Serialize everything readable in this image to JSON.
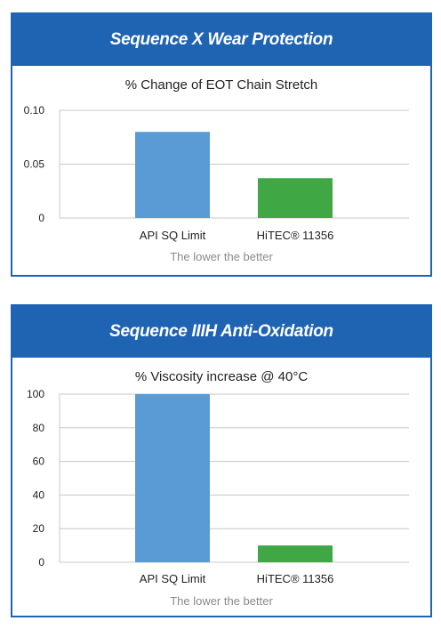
{
  "panels": [
    {
      "header": "Sequence X Wear Protection",
      "footnote": "The lower the better",
      "chart_data": {
        "type": "bar",
        "title": "% Change of EOT Chain Stretch",
        "categories": [
          "API SQ Limit",
          "HiTEC® 11356"
        ],
        "values": [
          0.08,
          0.037
        ],
        "colors": [
          "#5b9bd5",
          "#3fa845"
        ],
        "ylim": [
          0,
          0.1
        ],
        "yticks": [
          "0.10",
          "0.05",
          "0"
        ],
        "ytick_values": [
          0.1,
          0.05,
          0
        ],
        "grid": true,
        "xlabel": "",
        "ylabel": ""
      }
    },
    {
      "header": "Sequence IIIH Anti-Oxidation",
      "footnote": "The lower the better",
      "chart_data": {
        "type": "bar",
        "title": "% Viscosity increase @ 40°C",
        "categories": [
          "API SQ Limit",
          "HiTEC® 11356"
        ],
        "values": [
          100,
          10
        ],
        "colors": [
          "#5b9bd5",
          "#3fa845"
        ],
        "ylim": [
          0,
          100
        ],
        "yticks": [
          "100",
          "80",
          "60",
          "40",
          "20",
          "0"
        ],
        "ytick_values": [
          100,
          80,
          60,
          40,
          20,
          0
        ],
        "grid": true,
        "xlabel": "",
        "ylabel": ""
      }
    }
  ]
}
